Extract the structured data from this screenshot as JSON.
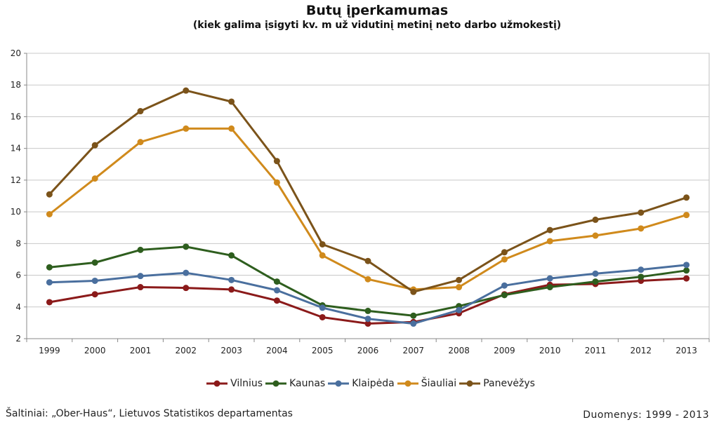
{
  "chart_data": {
    "type": "line",
    "title": "Butų įperkamumas",
    "subtitle": "(kiek galima įsigyti kv. m už vidutinį metinį neto darbo užmokestį)",
    "xlabel": "",
    "ylabel": "",
    "categories": [
      "1999",
      "2000",
      "2001",
      "2002",
      "2003",
      "2004",
      "2005",
      "2006",
      "2007",
      "2008",
      "2009",
      "2010",
      "2011",
      "2012",
      "2013"
    ],
    "ylim": [
      2,
      20
    ],
    "yticks": [
      "2",
      "4",
      "6",
      "8",
      "10",
      "12",
      "14",
      "16",
      "18",
      "20"
    ],
    "grid": true,
    "legend": "bottom",
    "series": [
      {
        "name": "Vilnius",
        "color": "#8b1a1a",
        "values": [
          4.3,
          4.8,
          5.25,
          5.2,
          5.1,
          4.4,
          3.35,
          2.95,
          3.05,
          3.6,
          4.8,
          5.4,
          5.45,
          5.65,
          5.8
        ]
      },
      {
        "name": "Kaunas",
        "color": "#2e5e1e",
        "values": [
          6.5,
          6.8,
          7.6,
          7.8,
          7.25,
          5.6,
          4.1,
          3.75,
          3.45,
          4.05,
          4.75,
          5.25,
          5.6,
          5.9,
          6.3
        ]
      },
      {
        "name": "Klaipėda",
        "color": "#4a6f9e",
        "values": [
          5.55,
          5.65,
          5.95,
          6.15,
          5.7,
          5.05,
          3.95,
          3.25,
          2.95,
          3.8,
          5.35,
          5.8,
          6.1,
          6.35,
          6.65
        ]
      },
      {
        "name": "Šiauliai",
        "color": "#d08a1c",
        "values": [
          9.85,
          12.1,
          14.4,
          15.25,
          15.25,
          11.85,
          7.25,
          5.75,
          5.1,
          5.25,
          7.0,
          8.15,
          8.5,
          8.95,
          9.8
        ]
      },
      {
        "name": "Panevėžys",
        "color": "#7b531a",
        "values": [
          11.1,
          14.2,
          16.35,
          17.65,
          16.95,
          13.2,
          7.95,
          6.9,
          4.95,
          5.7,
          7.45,
          8.85,
          9.5,
          9.95,
          10.9
        ]
      }
    ]
  },
  "footer": {
    "source": "Šaltiniai: „Ober-Haus“, Lietuvos Statistikos departamentas",
    "period": "Duomenys: 1999 - 2013"
  }
}
